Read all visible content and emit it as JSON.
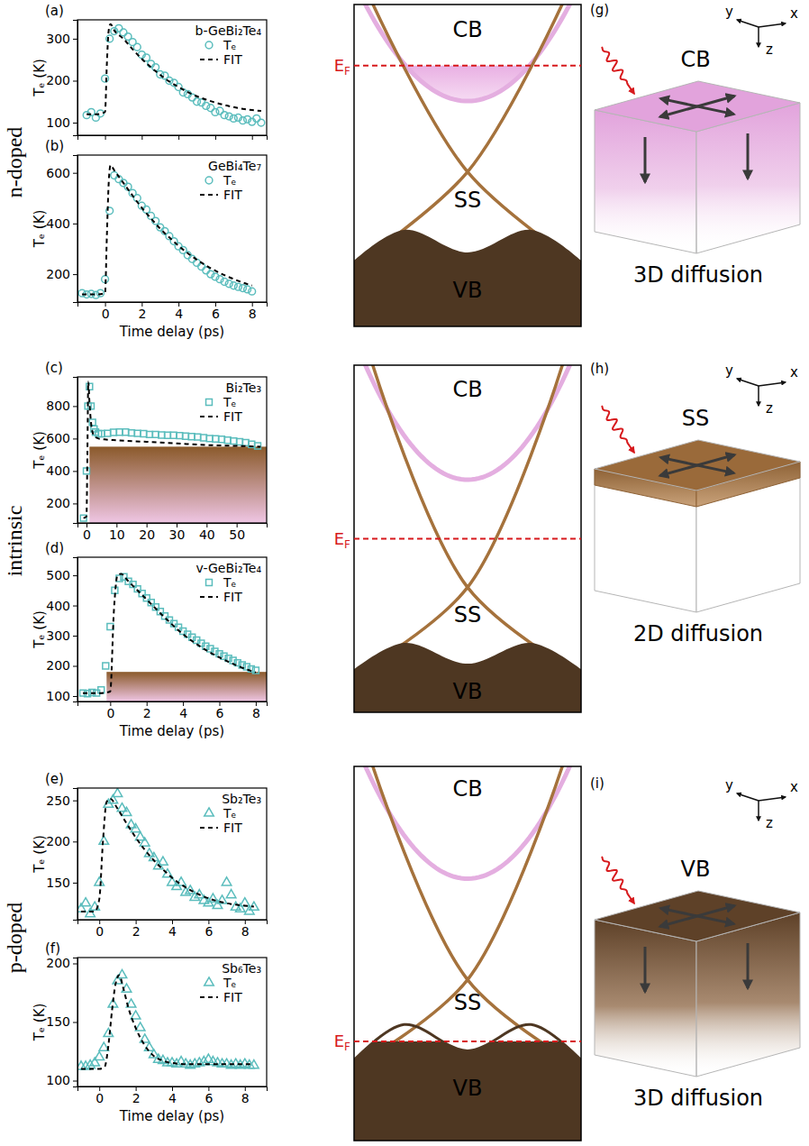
{
  "rows": [
    "n-doped",
    "intrinsic",
    "p-doped"
  ],
  "chart_data": [
    {
      "letter": "(a)",
      "type": "scatter",
      "title": "b-GeBi₂Te₄",
      "y_label": "Tₑ (K)",
      "legend": "upper right",
      "tick_labels": "y",
      "xlim": [
        -1.5,
        8.8
      ],
      "xticks": [
        0,
        2,
        4,
        6,
        8
      ],
      "ylim": [
        70,
        345
      ],
      "yticks": [
        100,
        200,
        300
      ],
      "series": [
        {
          "name": "Tₑ",
          "type": "scatter",
          "marker": "circle",
          "color": "#5bbdbd",
          "x": [
            -1,
            -0.75,
            -0.5,
            -0.25,
            0,
            0.25,
            0.5,
            0.75,
            1,
            1.25,
            1.5,
            1.75,
            2,
            2.25,
            2.5,
            2.75,
            3,
            3.25,
            3.5,
            3.75,
            4,
            4.25,
            4.5,
            4.75,
            5,
            5.25,
            5.5,
            5.75,
            6,
            6.25,
            6.5,
            6.75,
            7,
            7.25,
            7.5,
            7.75,
            8,
            8.25,
            8.5
          ],
          "values": [
            118,
            125,
            112,
            122,
            205,
            300,
            318,
            325,
            315,
            305,
            292,
            280,
            262,
            255,
            240,
            232,
            215,
            212,
            200,
            195,
            185,
            172,
            168,
            160,
            150,
            148,
            140,
            135,
            125,
            128,
            118,
            115,
            110,
            112,
            105,
            108,
            102,
            110,
            100
          ]
        },
        {
          "name": "FIT",
          "type": "line",
          "line_style": "dashed",
          "color": "#000000",
          "x": [
            -1,
            -0.5,
            0,
            0.1,
            0.2,
            0.3,
            0.5,
            1,
            1.5,
            2,
            2.5,
            3,
            3.5,
            4,
            4.5,
            5,
            5.5,
            6,
            6.5,
            7,
            7.5,
            8,
            8.5
          ],
          "values": [
            120,
            120,
            125,
            240,
            320,
            335,
            320,
            300,
            275,
            252,
            232,
            214,
            198,
            185,
            173,
            163,
            155,
            148,
            142,
            137,
            133,
            130,
            128
          ]
        }
      ]
    },
    {
      "letter": "(b)",
      "type": "scatter",
      "title": "GeBi₄Te₇",
      "y_label": "Tₑ (K)",
      "x_label": "Time delay (ps)",
      "legend": "upper right",
      "xlim": [
        -1.5,
        8.8
      ],
      "xticks": [
        0,
        2,
        4,
        6,
        8
      ],
      "ylim": [
        90,
        670
      ],
      "yticks": [
        200,
        400,
        600
      ],
      "series": [
        {
          "name": "Tₑ",
          "type": "scatter",
          "marker": "circle",
          "color": "#5bbdbd",
          "x": [
            -1.25,
            -1,
            -0.75,
            -0.5,
            -0.25,
            0,
            0.25,
            0.5,
            0.75,
            1,
            1.25,
            1.5,
            1.75,
            2,
            2.25,
            2.5,
            2.75,
            3,
            3.25,
            3.5,
            3.75,
            4,
            4.25,
            4.5,
            4.75,
            5,
            5.25,
            5.5,
            5.75,
            6,
            6.25,
            6.5,
            6.75,
            7,
            7.25,
            7.5,
            7.75,
            8
          ],
          "values": [
            125,
            120,
            122,
            118,
            125,
            180,
            450,
            590,
            575,
            560,
            545,
            520,
            500,
            470,
            455,
            430,
            410,
            385,
            370,
            350,
            330,
            310,
            295,
            275,
            260,
            245,
            230,
            215,
            200,
            190,
            180,
            170,
            162,
            155,
            150,
            145,
            140,
            132
          ]
        },
        {
          "name": "FIT",
          "type": "line",
          "line_style": "dashed",
          "color": "#000000",
          "x": [
            -1.25,
            -0.5,
            0,
            0.1,
            0.2,
            0.3,
            0.5,
            1,
            1.5,
            2,
            2.5,
            3,
            3.5,
            4,
            4.5,
            5,
            5.5,
            6,
            6.5,
            7,
            7.5,
            8
          ],
          "values": [
            120,
            120,
            125,
            350,
            560,
            630,
            610,
            560,
            510,
            462,
            420,
            380,
            345,
            312,
            283,
            257,
            234,
            214,
            196,
            181,
            167,
            155
          ]
        }
      ]
    },
    {
      "letter": "(c)",
      "type": "scatter",
      "title": "Bi₂Te₃",
      "y_label": "Tₑ (K)",
      "legend": "upper right",
      "xlim": [
        -3,
        60
      ],
      "xticks": [
        0,
        10,
        20,
        30,
        40,
        50
      ],
      "ylim": [
        80,
        980
      ],
      "yticks": [
        200,
        400,
        600,
        800
      ],
      "shaded_region": {
        "x": [
          1,
          60
        ],
        "y": [
          80,
          550
        ]
      },
      "series": [
        {
          "name": "Tₑ",
          "type": "scatter",
          "marker": "square",
          "color": "#5bbdbd",
          "x": [
            -1,
            0,
            0.5,
            1,
            1.5,
            2,
            2.5,
            3,
            4,
            5,
            7,
            9,
            11,
            13,
            15,
            17,
            19,
            21,
            23,
            25,
            27,
            29,
            31,
            33,
            35,
            37,
            39,
            41,
            43,
            45,
            47,
            49,
            51,
            53,
            55,
            57
          ],
          "values": [
            110,
            400,
            800,
            920,
            800,
            700,
            660,
            640,
            630,
            630,
            632,
            638,
            640,
            640,
            635,
            632,
            630,
            625,
            625,
            622,
            620,
            620,
            618,
            615,
            612,
            610,
            605,
            600,
            598,
            595,
            590,
            585,
            580,
            575,
            565,
            555
          ]
        },
        {
          "name": "FIT",
          "type": "line",
          "line_style": "dashed",
          "color": "#000000",
          "x": [
            -1,
            0,
            0.3,
            0.6,
            1,
            1.5,
            2,
            3,
            4,
            6,
            10,
            20,
            30,
            40,
            50,
            58
          ],
          "values": [
            110,
            120,
            500,
            950,
            820,
            700,
            640,
            610,
            600,
            595,
            590,
            580,
            570,
            560,
            555,
            550
          ]
        }
      ]
    },
    {
      "letter": "(d)",
      "type": "scatter",
      "title": "v-GeBi₂Te₄",
      "y_label": "Tₑ (K)",
      "x_label": "Time delay (ps)",
      "legend": "upper right",
      "xlim": [
        -1.8,
        8.6
      ],
      "xticks": [
        0,
        2,
        4,
        6,
        8
      ],
      "ylim": [
        82,
        560
      ],
      "yticks": [
        100,
        200,
        300,
        400,
        500
      ],
      "shaded_region": {
        "x": [
          -0.2,
          8.6
        ],
        "y": [
          82,
          180
        ]
      },
      "series": [
        {
          "name": "Tₑ",
          "type": "scatter",
          "marker": "square",
          "color": "#5bbdbd",
          "x": [
            -1.5,
            -1.25,
            -1,
            -0.75,
            -0.5,
            -0.25,
            0,
            0.25,
            0.5,
            0.75,
            1,
            1.25,
            1.5,
            1.75,
            2,
            2.25,
            2.5,
            2.75,
            3,
            3.25,
            3.5,
            3.75,
            4,
            4.25,
            4.5,
            4.75,
            5,
            5.25,
            5.5,
            5.75,
            6,
            6.25,
            6.5,
            6.75,
            7,
            7.25,
            7.5,
            7.75,
            8
          ],
          "values": [
            110,
            108,
            112,
            110,
            120,
            200,
            330,
            450,
            490,
            495,
            480,
            470,
            455,
            440,
            425,
            410,
            395,
            380,
            365,
            352,
            340,
            328,
            315,
            305,
            295,
            285,
            275,
            265,
            257,
            248,
            240,
            232,
            225,
            218,
            210,
            203,
            197,
            190,
            185
          ]
        },
        {
          "name": "FIT",
          "type": "line",
          "line_style": "dashed",
          "color": "#000000",
          "x": [
            -1.5,
            -0.5,
            0,
            0.2,
            0.4,
            0.6,
            1,
            1.5,
            2,
            3,
            4,
            5,
            6,
            7,
            8
          ],
          "values": [
            110,
            110,
            115,
            380,
            500,
            505,
            480,
            450,
            420,
            360,
            305,
            262,
            228,
            200,
            178
          ]
        }
      ]
    },
    {
      "letter": "(e)",
      "type": "scatter",
      "title": "Sb₂Te₃",
      "y_label": "Tₑ (K)",
      "legend": "upper right",
      "xlim": [
        -1.2,
        9.2
      ],
      "xticks": [
        0,
        2,
        4,
        6,
        8
      ],
      "ylim": [
        105,
        265
      ],
      "yticks": [
        150,
        200,
        250
      ],
      "series": [
        {
          "name": "Tₑ",
          "type": "scatter",
          "marker": "triangle",
          "color": "#5bbdbd",
          "x": [
            -1,
            -0.75,
            -0.5,
            -0.25,
            0,
            0.25,
            0.5,
            0.75,
            1,
            1.25,
            1.5,
            1.75,
            2,
            2.25,
            2.5,
            2.75,
            3,
            3.25,
            3.5,
            3.75,
            4,
            4.25,
            4.5,
            4.75,
            5,
            5.25,
            5.5,
            5.75,
            6,
            6.25,
            6.5,
            6.75,
            7,
            7.25,
            7.5,
            7.75,
            8,
            8.25,
            8.5
          ],
          "values": [
            118,
            125,
            112,
            120,
            150,
            200,
            245,
            250,
            258,
            240,
            235,
            220,
            215,
            205,
            198,
            185,
            180,
            170,
            175,
            160,
            150,
            145,
            150,
            138,
            140,
            132,
            135,
            128,
            125,
            130,
            122,
            128,
            150,
            135,
            120,
            118,
            125,
            115,
            120
          ]
        },
        {
          "name": "FIT",
          "type": "line",
          "line_style": "dashed",
          "color": "#000000",
          "x": [
            -1,
            -0.25,
            0,
            0.2,
            0.4,
            0.6,
            1,
            1.5,
            2,
            2.5,
            3,
            3.5,
            4,
            5,
            6,
            7,
            8,
            8.5
          ],
          "values": [
            115,
            115,
            130,
            200,
            248,
            252,
            240,
            222,
            205,
            190,
            177,
            166,
            156,
            141,
            131,
            125,
            122,
            121
          ]
        }
      ]
    },
    {
      "letter": "(f)",
      "type": "scatter",
      "title": "Sb₆Te₃",
      "y_label": "Tₑ (K)",
      "x_label": "Time delay (ps)",
      "legend": "upper right",
      "xlim": [
        -1.2,
        9.2
      ],
      "xticks": [
        0,
        2,
        4,
        6,
        8
      ],
      "ylim": [
        95,
        205
      ],
      "yticks": [
        100,
        150,
        200
      ],
      "series": [
        {
          "name": "Tₑ",
          "type": "scatter",
          "marker": "triangle",
          "color": "#5bbdbd",
          "x": [
            -1,
            -0.75,
            -0.5,
            -0.25,
            0,
            0.25,
            0.5,
            0.75,
            1,
            1.25,
            1.5,
            1.75,
            2,
            2.25,
            2.5,
            2.75,
            3,
            3.25,
            3.5,
            3.75,
            4,
            4.25,
            4.5,
            4.75,
            5,
            5.25,
            5.5,
            5.75,
            6,
            6.25,
            6.5,
            6.75,
            7,
            7.25,
            7.5,
            7.75,
            8,
            8.25,
            8.5
          ],
          "values": [
            112,
            112,
            113,
            115,
            120,
            128,
            140,
            165,
            185,
            190,
            178,
            165,
            155,
            145,
            135,
            128,
            122,
            118,
            117,
            115,
            115,
            114,
            116,
            114,
            113,
            114,
            115,
            116,
            118,
            116,
            115,
            114,
            114,
            113,
            114,
            113,
            114,
            113,
            113
          ]
        },
        {
          "name": "FIT",
          "type": "line",
          "line_style": "dashed",
          "color": "#000000",
          "x": [
            -1,
            0,
            0.3,
            0.5,
            0.7,
            0.9,
            1.1,
            1.3,
            1.6,
            2,
            2.5,
            3,
            3.5,
            4,
            5,
            6,
            7,
            8,
            8.5
          ],
          "values": [
            110,
            110,
            112,
            130,
            160,
            183,
            190,
            180,
            162,
            145,
            130,
            121,
            117,
            115,
            114,
            114,
            114,
            114,
            114
          ]
        }
      ]
    }
  ],
  "band_diagrams": [
    {
      "cb_label": "CB",
      "ss_label": "SS",
      "vb_label": "VB",
      "fermi_level": {
        "text": "E",
        "subscript": "F"
      }
    },
    {
      "cb_label": "CB",
      "ss_label": "SS",
      "vb_label": "VB",
      "fermi_level": {
        "text": "E",
        "subscript": "F"
      }
    },
    {
      "cb_label": "CB",
      "ss_label": "SS",
      "vb_label": "VB",
      "fermi_level": {
        "text": "E",
        "subscript": "F"
      }
    }
  ],
  "schematics": [
    {
      "letter": "(g)",
      "band": "CB",
      "caption": "3D diffusion",
      "axes": {
        "x": "x",
        "y": "y",
        "z": "z"
      }
    },
    {
      "letter": "(h)",
      "band": "SS",
      "caption": "2D diffusion",
      "axes": {
        "x": "x",
        "y": "y",
        "z": "z"
      }
    },
    {
      "letter": "(i)",
      "band": "VB",
      "caption": "3D diffusion",
      "axes": {
        "x": "x",
        "y": "y",
        "z": "z"
      }
    }
  ]
}
